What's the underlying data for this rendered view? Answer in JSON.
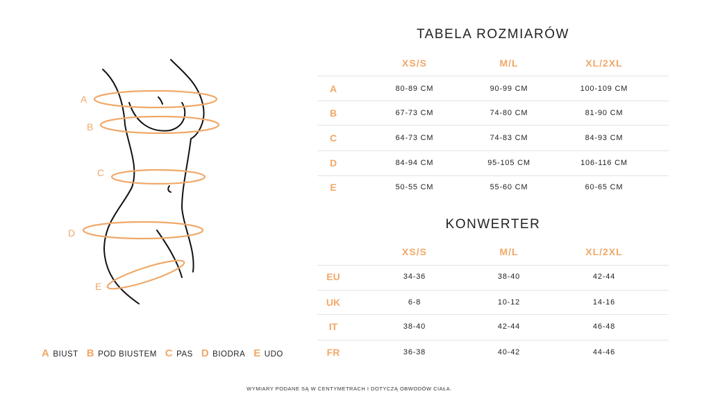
{
  "accent_color": "#f0a868",
  "size_table": {
    "title": "TABELA ROZMIARÓW",
    "columns": [
      "XS/S",
      "M/L",
      "XL/2XL"
    ],
    "rows": [
      {
        "label": "A",
        "values": [
          "80-89 CM",
          "90-99 CM",
          "100-109 CM"
        ]
      },
      {
        "label": "B",
        "values": [
          "67-73 CM",
          "74-80 CM",
          "81-90 CM"
        ]
      },
      {
        "label": "C",
        "values": [
          "64-73 CM",
          "74-83 CM",
          "84-93 CM"
        ]
      },
      {
        "label": "D",
        "values": [
          "84-94 CM",
          "95-105 CM",
          "106-116 CM"
        ]
      },
      {
        "label": "E",
        "values": [
          "50-55 CM",
          "55-60 CM",
          "60-65 CM"
        ]
      }
    ]
  },
  "converter": {
    "title": "KONWERTER",
    "columns": [
      "XS/S",
      "M/L",
      "XL/2XL"
    ],
    "rows": [
      {
        "label": "EU",
        "values": [
          "34-36",
          "38-40",
          "42-44"
        ]
      },
      {
        "label": "UK",
        "values": [
          "6-8",
          "10-12",
          "14-16"
        ]
      },
      {
        "label": "IT",
        "values": [
          "38-40",
          "42-44",
          "46-48"
        ]
      },
      {
        "label": "FR",
        "values": [
          "36-38",
          "40-42",
          "44-46"
        ]
      }
    ]
  },
  "figure_labels": [
    "A",
    "B",
    "C",
    "D",
    "E"
  ],
  "legend": [
    {
      "key": "A",
      "text": "BIUST"
    },
    {
      "key": "B",
      "text": "POD BIUSTEM"
    },
    {
      "key": "C",
      "text": "PAS"
    },
    {
      "key": "D",
      "text": "BIODRA"
    },
    {
      "key": "E",
      "text": "UDO"
    }
  ],
  "footnote": "WYMIARY PODANE SĄ W CENTYMETRACH I DOTYCZĄ OBWODÓW CIAŁA."
}
